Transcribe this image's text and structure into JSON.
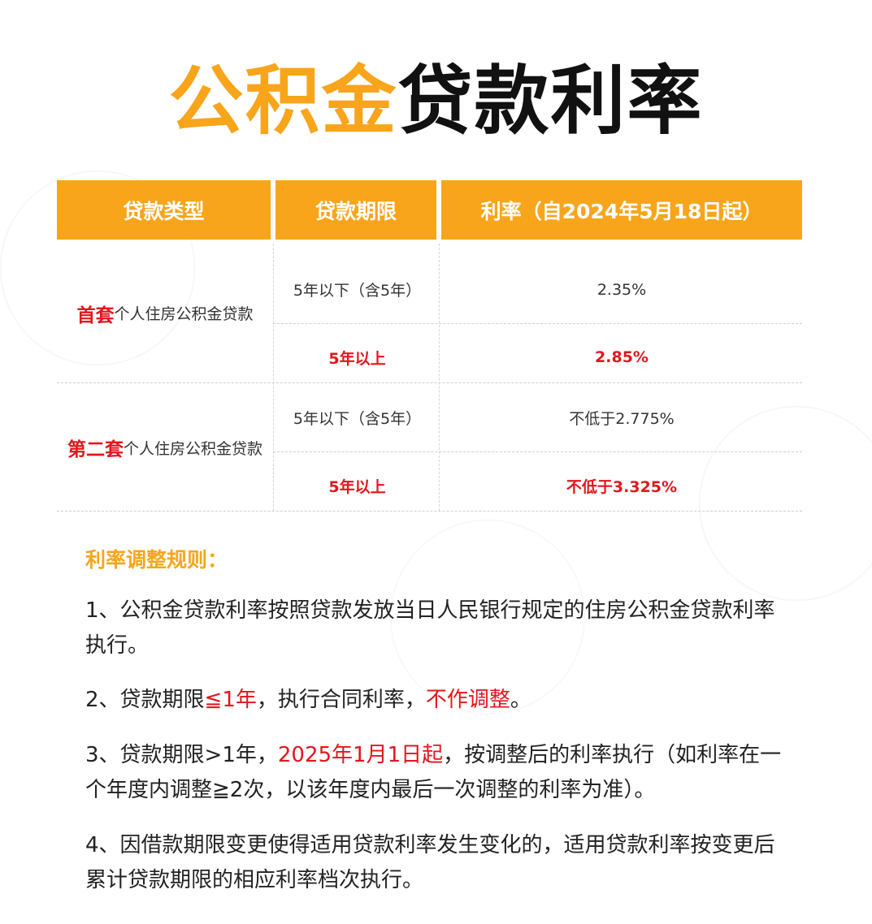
{
  "title": {
    "orange": "公积金",
    "black": "贷款利率"
  },
  "colors": {
    "orange": "#f8a51b",
    "red": "#e3161c"
  },
  "table": {
    "headers": [
      "贷款类型",
      "贷款期限",
      "利率（自2024年5月18日起）"
    ],
    "groups": [
      {
        "type_highlight": "首套",
        "type_rest": "个人住房公积金贷款",
        "rows": [
          {
            "term": "5年以下（含5年）",
            "rate": "2.35%",
            "highlight": false
          },
          {
            "term": "5年以上",
            "rate": "2.85%",
            "highlight": true
          }
        ]
      },
      {
        "type_highlight": "第二套",
        "type_rest": "个人住房公积金贷款",
        "rows": [
          {
            "term": "5年以下（含5年）",
            "rate": "不低于2.775%",
            "highlight": false
          },
          {
            "term": "5年以上",
            "rate": "不低于3.325%",
            "highlight": true
          }
        ]
      }
    ]
  },
  "rules": {
    "heading": "利率调整规则：",
    "items": [
      [
        {
          "text": "1、公积金贷款利率按照贷款发放当日人民银行规定的住房公积金贷款利率执行。"
        }
      ],
      [
        {
          "text": "2、贷款期限"
        },
        {
          "text": "≦1年",
          "red": true
        },
        {
          "text": "，执行合同利率，"
        },
        {
          "text": "不作调整",
          "red": true
        },
        {
          "text": "。"
        }
      ],
      [
        {
          "text": "3、贷款期限>1年，"
        },
        {
          "text": "2025年1月1日起",
          "red": true
        },
        {
          "text": "，按调整后的利率执行（如利率在一个年度内调整≧2次，以该年度内最后一次调整的利率为准）。"
        }
      ],
      [
        {
          "text": "4、因借款期限变更使得适用贷款利率发生变化的，适用贷款利率按变更后累计贷款期限的相应利率档次执行。"
        }
      ]
    ]
  }
}
